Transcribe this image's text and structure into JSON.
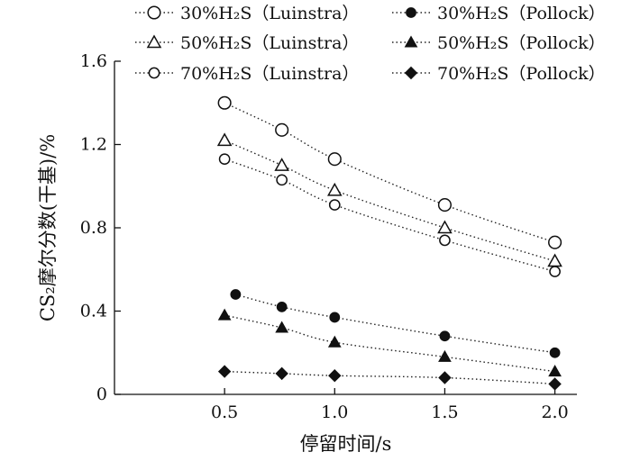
{
  "chart_data": {
    "type": "scatter",
    "xlabel": "停留时间/s",
    "ylabel": "CS₂摩尔分数(干基)/%",
    "xlim": [
      0,
      2.1
    ],
    "ylim": [
      0,
      1.6
    ],
    "xticks": [
      "0.5",
      "1.0",
      "1.5",
      "2.0"
    ],
    "yticks": [
      "0",
      "0.4",
      "0.8",
      "1.2",
      "1.6"
    ],
    "x_tick_values": [
      0.5,
      1.0,
      1.5,
      2.0
    ],
    "y_tick_values": [
      0,
      0.4,
      0.8,
      1.2,
      1.6
    ],
    "grid": false,
    "legend_position": "top",
    "series": [
      {
        "name": "30%H₂S（Luinstra）",
        "marker": "open-circle-large",
        "x": [
          0.5,
          0.76,
          1.0,
          1.5,
          2.0
        ],
        "y": [
          1.4,
          1.27,
          1.13,
          0.91,
          0.73
        ]
      },
      {
        "name": "50%H₂S（Luinstra）",
        "marker": "open-triangle",
        "x": [
          0.5,
          0.76,
          1.0,
          1.5,
          2.0
        ],
        "y": [
          1.22,
          1.1,
          0.98,
          0.8,
          0.64
        ]
      },
      {
        "name": "70%H₂S（Luinstra）",
        "marker": "open-circle-small",
        "x": [
          0.5,
          0.76,
          1.0,
          1.5,
          2.0
        ],
        "y": [
          1.13,
          1.03,
          0.91,
          0.74,
          0.59
        ]
      },
      {
        "name": "30%H₂S（Pollock）",
        "marker": "filled-circle",
        "x": [
          0.55,
          0.76,
          1.0,
          1.5,
          2.0
        ],
        "y": [
          0.48,
          0.42,
          0.37,
          0.28,
          0.2
        ]
      },
      {
        "name": "50%H₂S（Pollock）",
        "marker": "filled-triangle",
        "x": [
          0.5,
          0.76,
          1.0,
          1.5,
          2.0
        ],
        "y": [
          0.38,
          0.32,
          0.25,
          0.18,
          0.11
        ]
      },
      {
        "name": "70%H₂S（Pollock）",
        "marker": "filled-diamond",
        "x": [
          0.5,
          0.76,
          1.0,
          1.5,
          2.0
        ],
        "y": [
          0.11,
          0.1,
          0.09,
          0.08,
          0.05
        ]
      }
    ]
  }
}
